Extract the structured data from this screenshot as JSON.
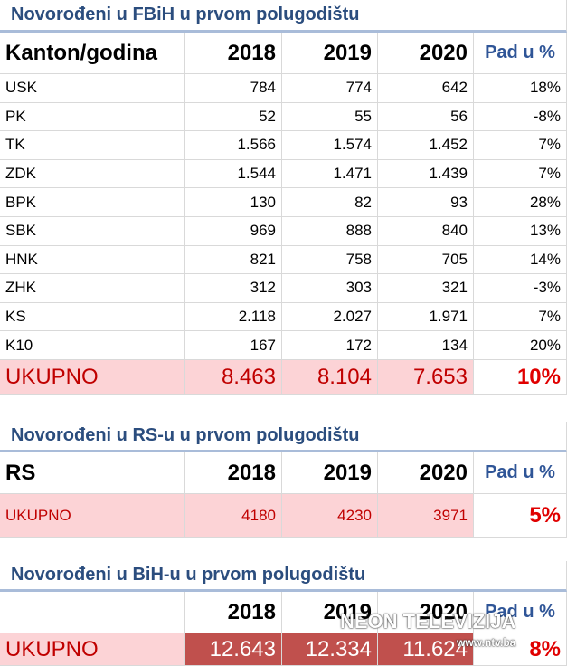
{
  "sections": [
    {
      "title": "Novorođeni u FBiH u prvom polugodištu",
      "header": {
        "label": "Kanton/godina",
        "years": [
          "2018",
          "2019",
          "2020"
        ],
        "change": "Pad u %"
      },
      "rows": [
        [
          "USK",
          "784",
          "774",
          "642",
          "18%"
        ],
        [
          "PK",
          "52",
          "55",
          "56",
          "-8%"
        ],
        [
          "TK",
          "1.566",
          "1.574",
          "1.452",
          "7%"
        ],
        [
          "ZDK",
          "1.544",
          "1.471",
          "1.439",
          "7%"
        ],
        [
          "BPK",
          "130",
          "82",
          "93",
          "28%"
        ],
        [
          "SBK",
          "969",
          "888",
          "840",
          "13%"
        ],
        [
          "HNK",
          "821",
          "758",
          "705",
          "14%"
        ],
        [
          "ZHK",
          "312",
          "303",
          "321",
          "-3%"
        ],
        [
          "KS",
          "2.118",
          "2.027",
          "1.971",
          "7%"
        ],
        [
          "K10",
          "167",
          "172",
          "134",
          "20%"
        ]
      ],
      "total": [
        "UKUPNO",
        "8.463",
        "8.104",
        "7.653",
        "10%"
      ]
    },
    {
      "title": "Novorođeni u RS-u u prvom polugodištu",
      "header": {
        "label": "RS",
        "years": [
          "2018",
          "2019",
          "2020"
        ],
        "change": "Pad u %"
      },
      "total": [
        "UKUPNO",
        "4180",
        "4230",
        "3971",
        "5%"
      ]
    },
    {
      "title": "Novorođeni u BiH-u u prvom polugodištu",
      "header": {
        "years": [
          "2018",
          "2019",
          "2020"
        ],
        "change": "Pad u %"
      },
      "total": [
        "UKUPNO",
        "12.643",
        "12.334",
        "11.624",
        "8%"
      ]
    }
  ],
  "watermark": {
    "brand": "NEON TELEVIZIJA",
    "url": "www.ntv.ba"
  }
}
